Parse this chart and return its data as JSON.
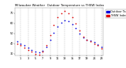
{
  "title": "Milwaukee Weather  Outdoor Temperature vs THSW Index per Hour (24 Hours)",
  "title_fontsize": 2.8,
  "hours": [
    0,
    1,
    2,
    3,
    4,
    5,
    6,
    7,
    8,
    9,
    10,
    11,
    12,
    13,
    14,
    15,
    16,
    17,
    18,
    19,
    20,
    21,
    22,
    23
  ],
  "temp": [
    42,
    40,
    38,
    36,
    34,
    32,
    31,
    33,
    37,
    44,
    51,
    57,
    61,
    63,
    62,
    59,
    55,
    50,
    46,
    44,
    43,
    41,
    39,
    37
  ],
  "thsw": [
    40,
    38,
    36,
    34,
    32,
    30,
    29,
    32,
    38,
    48,
    58,
    66,
    70,
    72,
    70,
    66,
    60,
    53,
    47,
    44,
    42,
    40,
    38,
    35
  ],
  "temp_color": "#0000dd",
  "thsw_color": "#dd0000",
  "bg_color": "#ffffff",
  "grid_color": "#999999",
  "ylim": [
    28,
    75
  ],
  "ytick_values": [
    30,
    40,
    50,
    60,
    70
  ],
  "ytick_labels": [
    "30",
    "40",
    "50",
    "60",
    "70"
  ],
  "xtick_values": [
    1,
    3,
    5,
    7,
    9,
    11,
    13,
    15,
    17,
    19,
    21,
    23
  ],
  "xtick_labels": [
    "1",
    "3",
    "5",
    "7",
    "9",
    "11",
    "13",
    "15",
    "17",
    "19",
    "21",
    "23"
  ],
  "legend_temp": "Outdoor Temp",
  "legend_thsw": "THSW Index",
  "legend_fontsize": 2.5,
  "marker_size": 1.5,
  "tick_fontsize": 2.5,
  "grid_x_positions": [
    1,
    3,
    5,
    7,
    9,
    11,
    13,
    15,
    17,
    19,
    21,
    23
  ]
}
